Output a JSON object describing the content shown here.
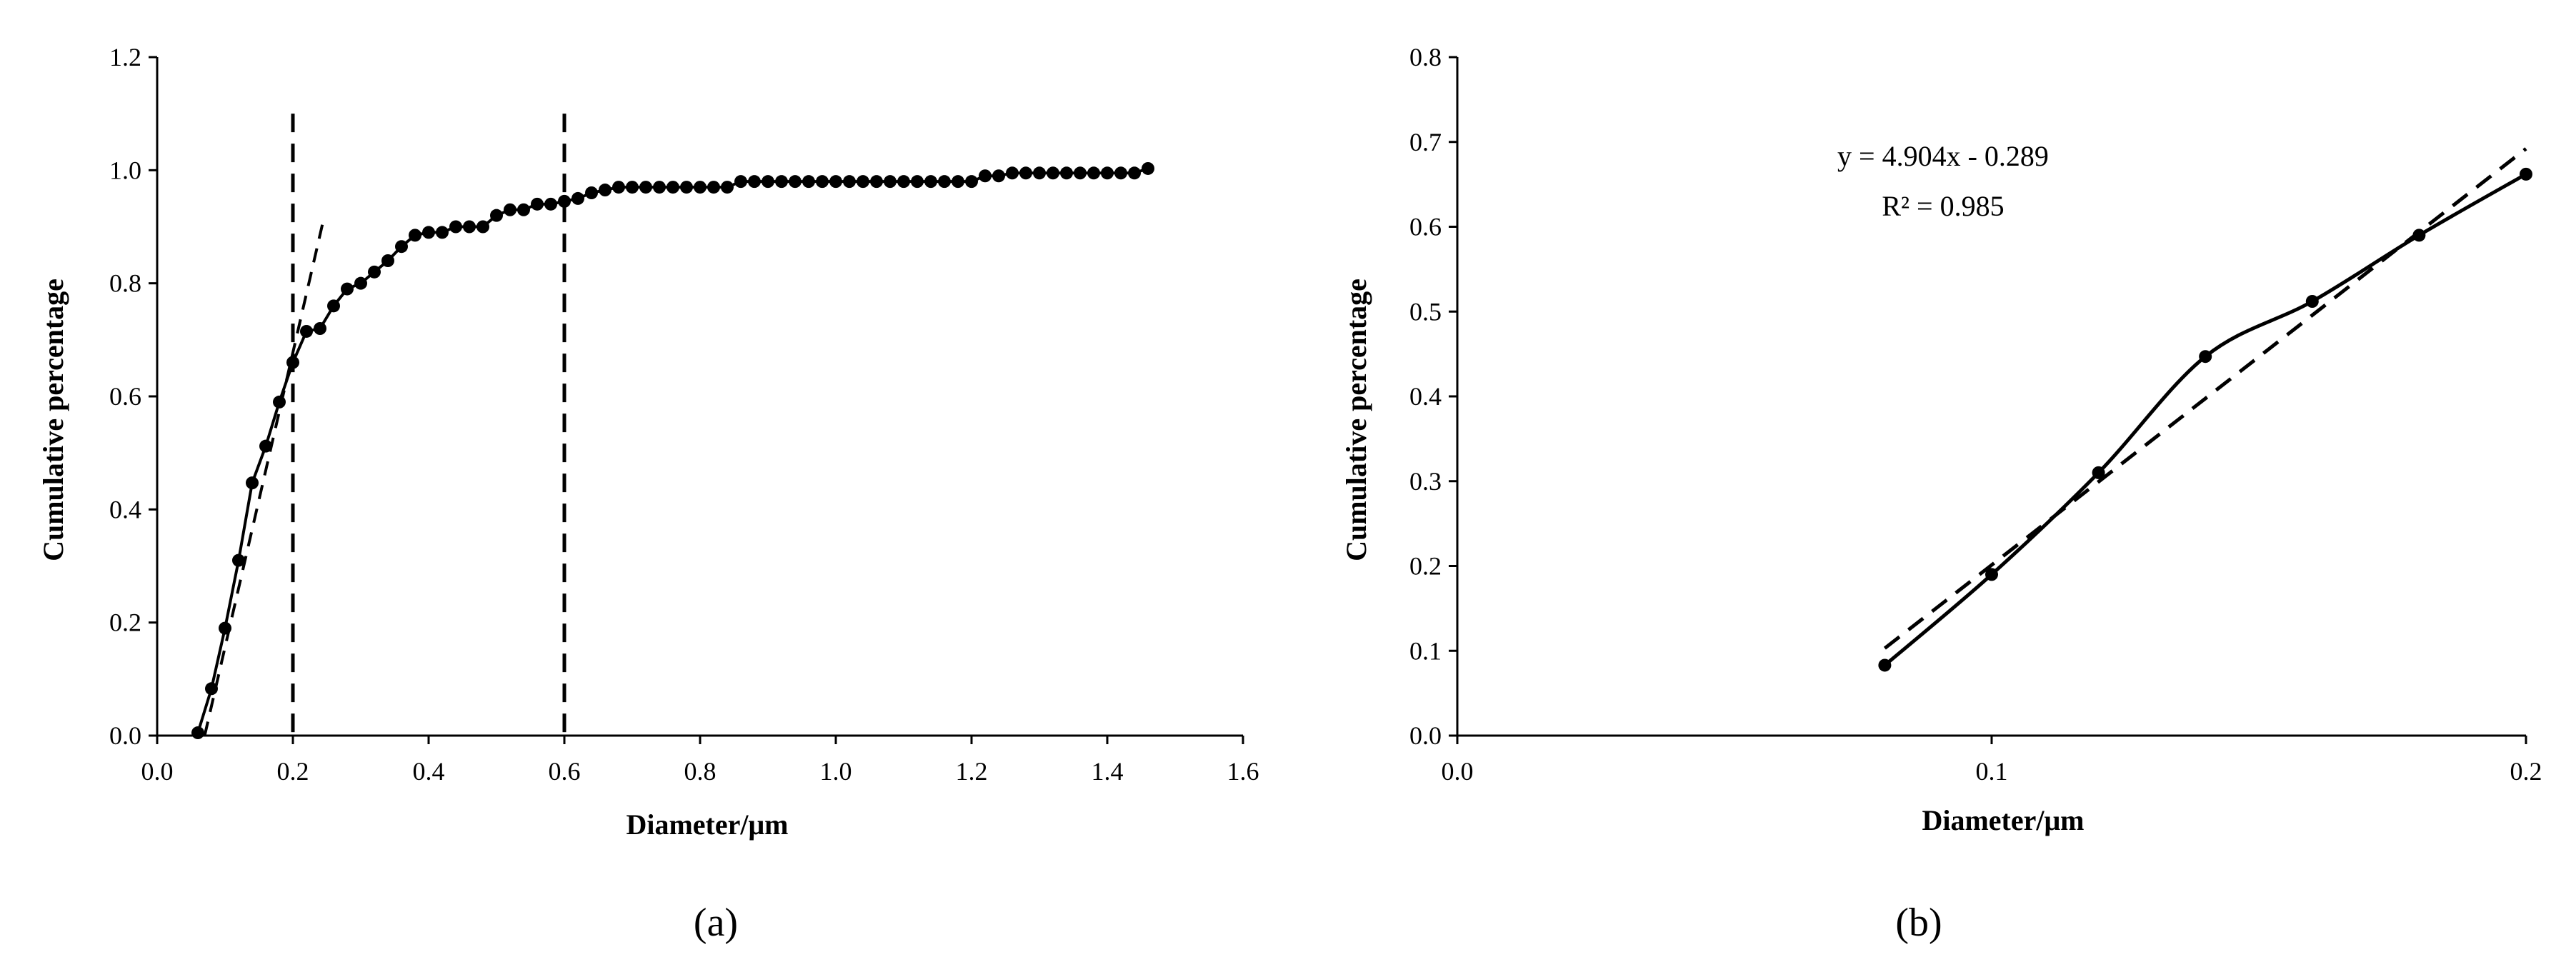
{
  "colors": {
    "ink": "#000000",
    "background": "#ffffff"
  },
  "chart_data": [
    {
      "type": "scatter",
      "panel_label": "(a)",
      "xlabel": "Diameter/μm",
      "ylabel": "Cumulative percentage",
      "xlim": [
        0.0,
        1.6
      ],
      "ylim": [
        0.0,
        1.2
      ],
      "x_ticks": [
        "0.0",
        "0.2",
        "0.4",
        "0.6",
        "0.8",
        "1.0",
        "1.2",
        "1.4",
        "1.6"
      ],
      "y_ticks": [
        "0.0",
        "0.2",
        "0.4",
        "0.6",
        "0.8",
        "1.0",
        "1.2"
      ],
      "grid": false,
      "series": [
        {
          "style": "solid line with circle markers",
          "x": [
            0.06,
            0.08,
            0.1,
            0.12,
            0.14,
            0.16,
            0.18,
            0.2,
            0.22,
            0.24,
            0.26,
            0.28,
            0.3,
            0.32,
            0.34,
            0.36,
            0.38,
            0.4,
            0.42,
            0.44,
            0.46,
            0.48,
            0.5,
            0.52,
            0.54,
            0.56,
            0.58,
            0.6,
            0.62,
            0.64,
            0.66,
            0.68,
            0.7,
            0.72,
            0.74,
            0.76,
            0.78,
            0.8,
            0.82,
            0.84,
            0.86,
            0.88,
            0.9,
            0.92,
            0.94,
            0.96,
            0.98,
            1.0,
            1.02,
            1.04,
            1.06,
            1.08,
            1.1,
            1.12,
            1.14,
            1.16,
            1.18,
            1.2,
            1.22,
            1.24,
            1.26,
            1.28,
            1.3,
            1.32,
            1.34,
            1.36,
            1.38,
            1.4,
            1.42,
            1.44,
            1.46
          ],
          "y": [
            0.005,
            0.083,
            0.19,
            0.31,
            0.447,
            0.512,
            0.59,
            0.66,
            0.715,
            0.72,
            0.76,
            0.79,
            0.8,
            0.82,
            0.84,
            0.865,
            0.885,
            0.89,
            0.89,
            0.9,
            0.9,
            0.9,
            0.92,
            0.93,
            0.93,
            0.94,
            0.94,
            0.945,
            0.95,
            0.96,
            0.965,
            0.97,
            0.97,
            0.97,
            0.97,
            0.97,
            0.97,
            0.97,
            0.97,
            0.97,
            0.98,
            0.98,
            0.98,
            0.98,
            0.98,
            0.98,
            0.98,
            0.98,
            0.98,
            0.98,
            0.98,
            0.98,
            0.98,
            0.98,
            0.98,
            0.98,
            0.98,
            0.98,
            0.99,
            0.99,
            0.995,
            0.995,
            0.995,
            0.995,
            0.995,
            0.995,
            0.995,
            0.995,
            0.995,
            0.995,
            1.003
          ]
        },
        {
          "style": "dashed linear fit",
          "x": [
            0.07,
            0.245
          ],
          "y": [
            0.0,
            0.912
          ]
        }
      ],
      "reference_lines": [
        {
          "style": "dashed vertical",
          "x": 0.2,
          "y_range": [
            0.0,
            1.1
          ]
        },
        {
          "style": "dashed vertical",
          "x": 0.6,
          "y_range": [
            0.0,
            1.1
          ]
        }
      ]
    },
    {
      "type": "scatter",
      "panel_label": "(b)",
      "xlabel": "Diameter/μm",
      "ylabel": "Cumulative percentage",
      "xlim": [
        0.0,
        0.2
      ],
      "ylim": [
        0.0,
        0.8
      ],
      "x_ticks": [
        "0.0",
        "0.1",
        "0.2"
      ],
      "y_ticks": [
        "0.0",
        "0.1",
        "0.2",
        "0.3",
        "0.4",
        "0.5",
        "0.6",
        "0.7",
        "0.8"
      ],
      "x_axis_note": "axis is stretched: 0.0 to 0.1 spans the same width as 0.1 to 0.2 (segmented)",
      "grid": false,
      "annotations": [
        "y = 4.904x - 0.289",
        "R² = 0.985"
      ],
      "series": [
        {
          "style": "smoothed solid line with circle markers",
          "x": [
            0.08,
            0.1,
            0.12,
            0.14,
            0.16,
            0.18,
            0.2
          ],
          "y": [
            0.083,
            0.19,
            0.31,
            0.447,
            0.512,
            0.59,
            0.662
          ]
        },
        {
          "style": "dashed linear trendline",
          "x": [
            0.08,
            0.2
          ],
          "y": [
            0.103,
            0.692
          ]
        }
      ]
    }
  ]
}
